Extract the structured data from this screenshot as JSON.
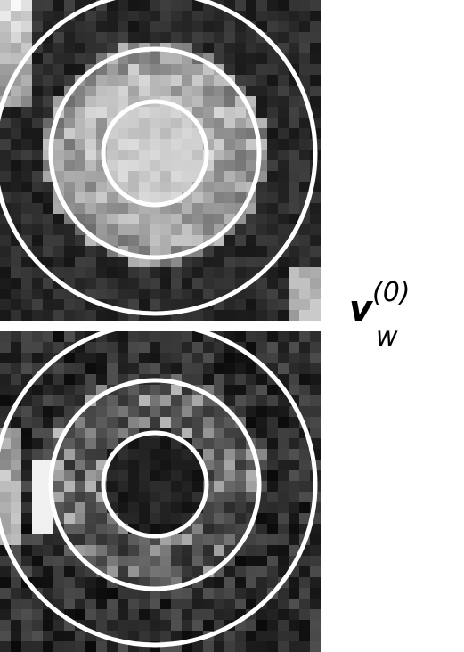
{
  "panels": [
    {
      "name": "top-mri-patch",
      "tone": "bright-center"
    },
    {
      "name": "bottom-mri-patch",
      "tone": "dark-center"
    }
  ],
  "ring_color": "#ffffff",
  "label": {
    "symbol": "v",
    "superscript": "(0)",
    "subscript": "w"
  }
}
